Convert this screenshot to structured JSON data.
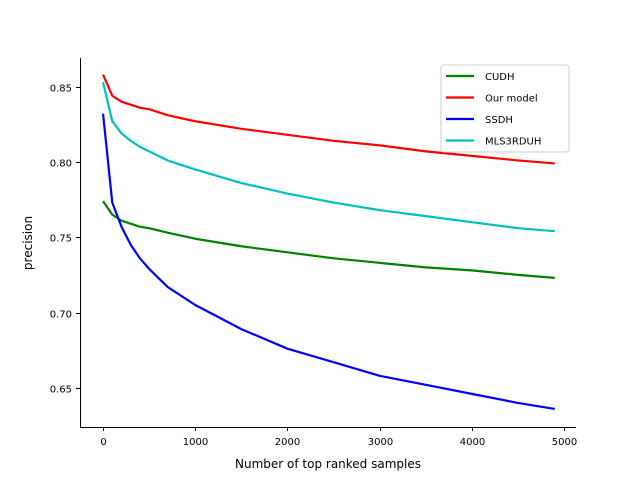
{
  "chart_data": {
    "type": "line",
    "title": "",
    "xlabel": "Number of top ranked samples",
    "ylabel": "precision",
    "xlim": [
      -250,
      5130
    ],
    "ylim": [
      0.624,
      0.869
    ],
    "xticks": [
      0,
      1000,
      2000,
      3000,
      4000,
      5000
    ],
    "xtick_labels": [
      "0",
      "1000",
      "2000",
      "3000",
      "4000",
      "5000"
    ],
    "yticks": [
      0.65,
      0.7,
      0.75,
      0.8,
      0.85
    ],
    "ytick_labels": [
      "0.65",
      "0.70",
      "0.75",
      "0.80",
      "0.85"
    ],
    "grid": false,
    "legend_position": "top-right",
    "x": [
      0,
      100,
      200,
      300,
      400,
      500,
      700,
      1000,
      1500,
      2000,
      2500,
      3000,
      3500,
      4000,
      4500,
      4900
    ],
    "series": [
      {
        "name": "CUDH",
        "color": "#008000",
        "values": [
          0.774,
          0.765,
          0.761,
          0.759,
          0.757,
          0.756,
          0.753,
          0.749,
          0.744,
          0.74,
          0.736,
          0.733,
          0.73,
          0.728,
          0.725,
          0.723
        ]
      },
      {
        "name": "Our model",
        "color": "#ff0000",
        "values": [
          0.858,
          0.844,
          0.84,
          0.838,
          0.836,
          0.835,
          0.831,
          0.827,
          0.822,
          0.818,
          0.814,
          0.811,
          0.807,
          0.804,
          0.801,
          0.799
        ]
      },
      {
        "name": "SSDH",
        "color": "#0000ff",
        "values": [
          0.832,
          0.773,
          0.757,
          0.745,
          0.736,
          0.729,
          0.717,
          0.705,
          0.689,
          0.676,
          0.667,
          0.658,
          0.652,
          0.646,
          0.64,
          0.636
        ]
      },
      {
        "name": "MLS3RDUH",
        "color": "#00bfbf",
        "values": [
          0.853,
          0.827,
          0.819,
          0.814,
          0.81,
          0.807,
          0.801,
          0.795,
          0.786,
          0.779,
          0.773,
          0.768,
          0.764,
          0.76,
          0.756,
          0.754
        ]
      }
    ]
  }
}
